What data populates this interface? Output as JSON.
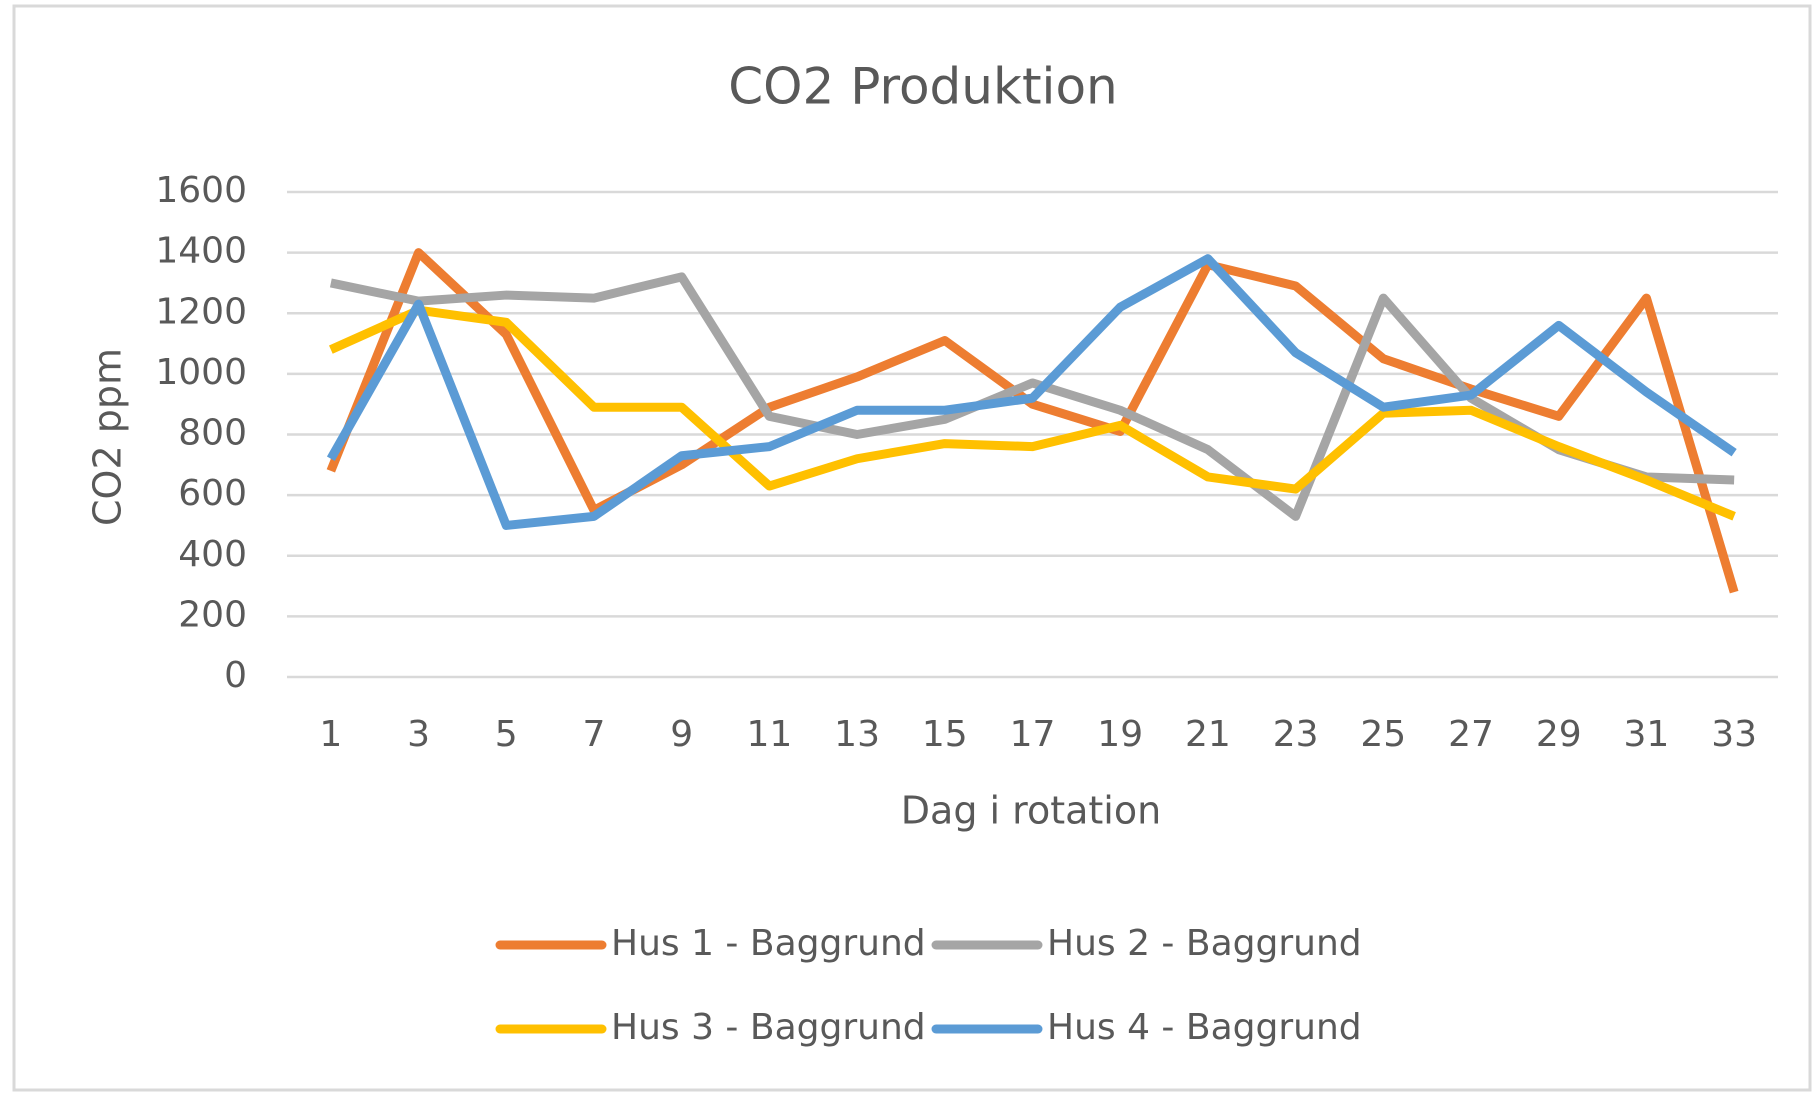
{
  "chart_data": {
    "type": "line",
    "title": "CO2 Produktion",
    "x_label": "Dag i rotation",
    "y_label": "CO2 ppm",
    "categories": [
      "1",
      "3",
      "5",
      "7",
      "9",
      "11",
      "13",
      "15",
      "17",
      "19",
      "21",
      "23",
      "25",
      "27",
      "29",
      "31",
      "33"
    ],
    "series": [
      {
        "name": "Hus 1 - Baggrund",
        "color": "#ed7d31",
        "values": [
          680,
          1400,
          1130,
          550,
          700,
          890,
          990,
          1110,
          900,
          810,
          1360,
          1290,
          1050,
          950,
          860,
          1250,
          280
        ]
      },
      {
        "name": "Hus 2 - Baggrund",
        "color": "#a5a5a5",
        "values": [
          1300,
          1240,
          1260,
          1250,
          1320,
          860,
          800,
          850,
          970,
          880,
          750,
          530,
          1250,
          920,
          750,
          660,
          650
        ]
      },
      {
        "name": "Hus 3 - Baggrund",
        "color": "#ffc000",
        "values": [
          1080,
          1210,
          1170,
          890,
          890,
          630,
          720,
          770,
          760,
          830,
          660,
          620,
          870,
          880,
          760,
          650,
          530
        ]
      },
      {
        "name": "Hus 4 - Baggrund",
        "color": "#5b9bd5",
        "values": [
          720,
          1230,
          500,
          530,
          730,
          760,
          880,
          880,
          920,
          1220,
          1380,
          1070,
          890,
          930,
          1160,
          940,
          740
        ]
      }
    ],
    "ylim": [
      0,
      1600
    ],
    "yticks": [
      0,
      200,
      400,
      600,
      800,
      1000,
      1200,
      1400,
      1600
    ],
    "grid": true,
    "legend": "bottom"
  }
}
